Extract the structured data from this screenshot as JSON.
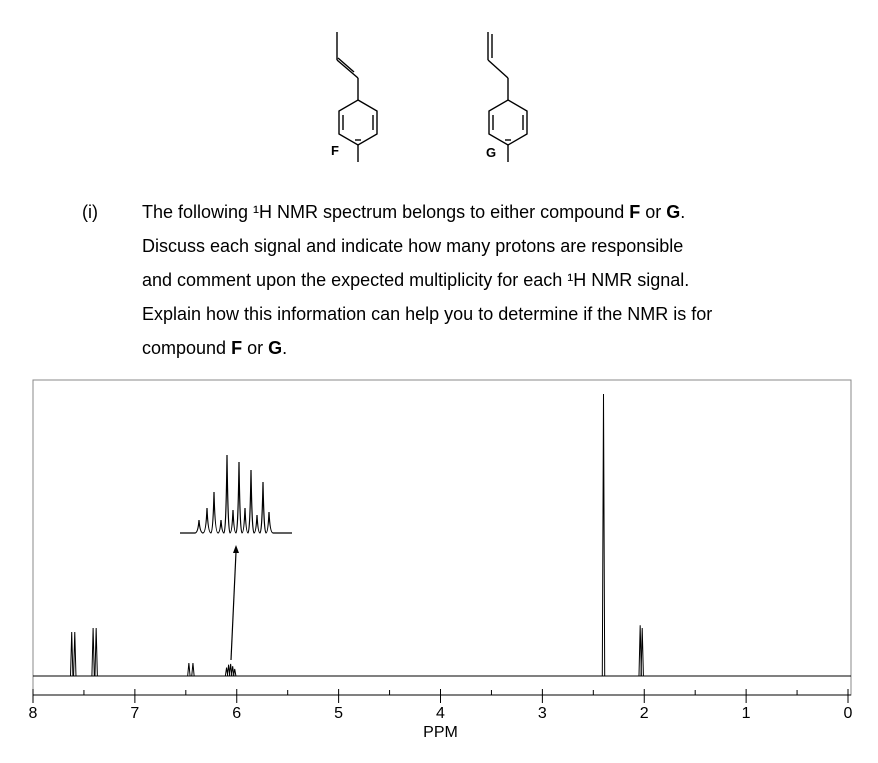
{
  "structures": {
    "labels": [
      "F",
      "G"
    ]
  },
  "question": {
    "number": "(i)",
    "lines": [
      [
        {
          "text": "The following ¹H NMR spectrum belongs to either compound "
        },
        {
          "text": "F",
          "bold": true
        },
        {
          "text": " or "
        },
        {
          "text": "G",
          "bold": true
        },
        {
          "text": "."
        }
      ],
      [
        {
          "text": "Discuss each signal and indicate how many protons are responsible"
        }
      ],
      [
        {
          "text": "and comment upon the expected multiplicity for each ¹H NMR signal."
        }
      ],
      [
        {
          "text": "Explain how this information can help you to determine if the NMR is for"
        }
      ],
      [
        {
          "text": "compound "
        },
        {
          "text": "F",
          "bold": true
        },
        {
          "text": " or "
        },
        {
          "text": "G",
          "bold": true
        },
        {
          "text": "."
        }
      ]
    ]
  },
  "spectrum": {
    "type": "nmr",
    "x_label": "PPM",
    "xlim": [
      8,
      0
    ],
    "xticks": [
      8,
      7,
      6,
      5,
      4,
      3,
      2,
      1,
      0
    ],
    "intensity_lim": [
      0,
      100
    ],
    "color": "#000000",
    "peaks": [
      {
        "ppm": 7.62,
        "height": 15.6
      },
      {
        "ppm": 7.59,
        "height": 15.6
      },
      {
        "ppm": 7.41,
        "height": 17
      },
      {
        "ppm": 7.38,
        "height": 17
      },
      {
        "ppm": 6.47,
        "height": 4.6
      },
      {
        "ppm": 6.43,
        "height": 4.6
      },
      {
        "ppm": 6.1,
        "height": 3
      },
      {
        "ppm": 6.08,
        "height": 4
      },
      {
        "ppm": 6.06,
        "height": 4.3
      },
      {
        "ppm": 6.04,
        "height": 3.5
      },
      {
        "ppm": 6.02,
        "height": 2.5
      },
      {
        "ppm": 2.4,
        "height": 100
      },
      {
        "ppm": 2.04,
        "height": 18
      },
      {
        "ppm": 2.02,
        "height": 17
      }
    ]
  }
}
